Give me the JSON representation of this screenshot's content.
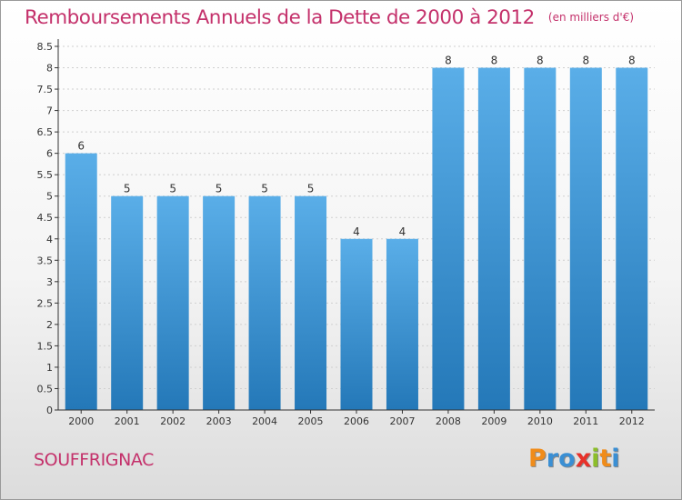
{
  "header": {
    "title": "Remboursements Annuels de la Dette de 2000 à 2012",
    "unit": "(en milliers d'€)"
  },
  "footer": {
    "commune": "SOUFFRIGNAC",
    "logo_text": "Proxiti"
  },
  "colors": {
    "title": "#c4316b",
    "bar_top": "#5aaee8",
    "bar_bottom": "#2478b8",
    "axis": "#333333",
    "grid": "#cfcfcf"
  },
  "chart_data": {
    "type": "bar",
    "title": "Remboursements Annuels de la Dette de 2000 à 2012",
    "subtitle": "(en milliers d'€)",
    "xlabel": "",
    "ylabel": "",
    "categories": [
      "2000",
      "2001",
      "2002",
      "2003",
      "2004",
      "2005",
      "2006",
      "2007",
      "2008",
      "2009",
      "2010",
      "2011",
      "2012"
    ],
    "values": [
      6,
      5,
      5,
      5,
      5,
      5,
      4,
      4,
      8,
      8,
      8,
      8,
      8
    ],
    "data_labels": [
      "6",
      "5",
      "5",
      "5",
      "5",
      "5",
      "4",
      "4",
      "8",
      "8",
      "8",
      "8",
      "8"
    ],
    "yticks": [
      "0",
      "0.5",
      "1",
      "1.5",
      "2",
      "2.5",
      "3",
      "3.5",
      "4",
      "4.5",
      "5",
      "5.5",
      "6",
      "6.5",
      "7",
      "7.5",
      "8",
      "8.5"
    ],
    "ylim": [
      0,
      8.5
    ],
    "grid": true,
    "legend": "none"
  }
}
